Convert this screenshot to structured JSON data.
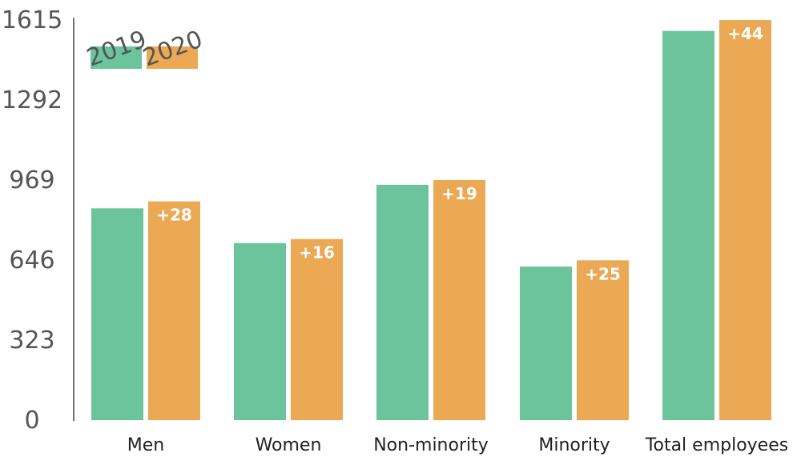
{
  "chart_data": {
    "type": "bar",
    "categories": [
      "Men",
      "Women",
      "Non-minority",
      "Minority",
      "Total employees"
    ],
    "series": [
      {
        "name": "2019",
        "color": "#6cc49d",
        "values": [
          855,
          715,
          950,
          620,
          1571
        ]
      },
      {
        "name": "2020",
        "color": "#eba955",
        "values": [
          883,
          731,
          969,
          645,
          1615
        ]
      }
    ],
    "data_labels": [
      "+28",
      "+16",
      "+19",
      "+25",
      "+44"
    ],
    "y_ticks": [
      "0",
      "323",
      "646",
      "969",
      "1292",
      "1615"
    ],
    "y_tick_values": [
      0,
      323,
      646,
      969,
      1292,
      1615
    ],
    "ylim": [
      0,
      1615
    ],
    "title": "",
    "xlabel": "",
    "ylabel": "",
    "grid": false,
    "legend": {
      "placement": "top-left",
      "entries": [
        "2019",
        "2020"
      ]
    }
  }
}
